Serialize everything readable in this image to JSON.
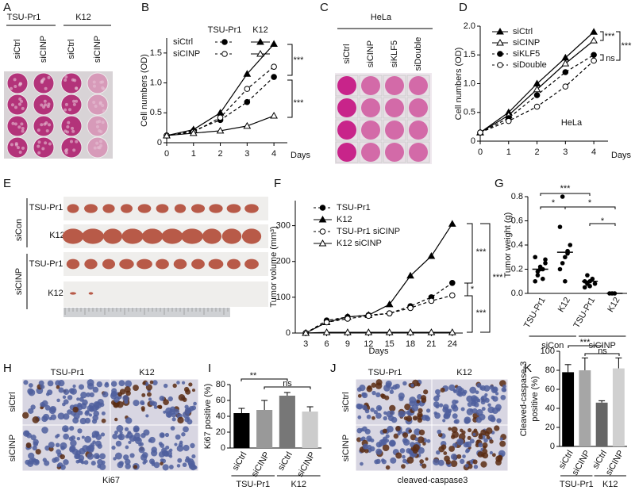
{
  "panel_labels": [
    "A",
    "B",
    "C",
    "D",
    "E",
    "F",
    "G",
    "H",
    "I",
    "J",
    "K"
  ],
  "images": [
    {
      "labels": [
        "TSU-Pr1",
        "K12",
        "siCtrl",
        "siCINP",
        "siCtrl",
        "siCINP"
      ]
    },
    {
      "labels": [
        "HeLa",
        "siCtrl",
        "siCINP",
        "siKLF5",
        "siDouble"
      ]
    },
    {
      "labels": [
        "siCon",
        "siCINP",
        "TSU-Pr1",
        "K12",
        "TSU-Pr1",
        "K12"
      ]
    },
    {
      "labels": [
        "TSU-Pr1",
        "K12",
        "siCtrl",
        "siCINP",
        "Ki67"
      ]
    },
    {
      "labels": [
        "TSU-Pr1",
        "K12",
        "siCtrl",
        "siCINP",
        "cleaved-caspase3"
      ]
    }
  ],
  "chart_data": [
    {
      "type": "line",
      "xlabel": "Days",
      "ylabel": "Cell numbers (OD)",
      "x": [
        0,
        1,
        2,
        3,
        4
      ],
      "xlim": [
        0,
        4.5
      ],
      "xticks": [
        0,
        1,
        2,
        3,
        4
      ],
      "ylim": [
        0,
        1.75
      ],
      "yticks": [
        0,
        0.5,
        {
          "value": 1,
          "label": "1.0"
        },
        1.5
      ],
      "legend_columns": [
        "TSU-Pr1",
        "K12"
      ],
      "legend_rows": [
        "siCtrl",
        "siCINP"
      ],
      "series": [
        {
          "color": "#000000",
          "marker": "circle",
          "filled": true,
          "dashed": true,
          "values": [
            0.12,
            0.2,
            0.38,
            0.68,
            1.1
          ]
        },
        {
          "color": "#000000",
          "marker": "triangle",
          "filled": true,
          "dashed": false,
          "values": [
            0.12,
            0.22,
            0.5,
            1.15,
            1.65
          ]
        },
        {
          "color": "#000000",
          "marker": "circle",
          "filled": false,
          "dashed": true,
          "values": [
            0.12,
            0.18,
            0.42,
            0.9,
            1.27
          ]
        },
        {
          "color": "#000000",
          "marker": "triangle",
          "filled": false,
          "dashed": false,
          "values": [
            0.12,
            0.16,
            0.2,
            0.28,
            0.45
          ]
        }
      ],
      "annotations": [
        "***",
        "***"
      ]
    },
    {
      "type": "line",
      "xlabel": "Days",
      "ylabel": "Cell numbers (OD)",
      "x": [
        0,
        1,
        2,
        3,
        4
      ],
      "xlim": [
        0,
        4.5
      ],
      "xticks": [
        0,
        1,
        2,
        3,
        4
      ],
      "ylim": [
        0,
        2
      ],
      "yticks": [
        0,
        0.5,
        {
          "value": 1,
          "label": "1.0"
        },
        1.5,
        {
          "value": 2,
          "label": "2.0"
        }
      ],
      "series": [
        {
          "name": "siCtrl",
          "color": "#000000",
          "marker": "triangle",
          "filled": true,
          "dashed": false,
          "values": [
            0.15,
            0.5,
            1.0,
            1.45,
            1.9
          ]
        },
        {
          "name": "siCINP",
          "color": "#000000",
          "marker": "triangle",
          "filled": false,
          "dashed": false,
          "values": [
            0.15,
            0.45,
            0.9,
            1.35,
            1.75
          ]
        },
        {
          "name": "siKLF5",
          "color": "#000000",
          "marker": "circle",
          "filled": true,
          "dashed": true,
          "values": [
            0.15,
            0.4,
            0.8,
            1.2,
            1.5
          ]
        },
        {
          "name": "siDouble",
          "color": "#000000",
          "marker": "circle",
          "filled": false,
          "dashed": true,
          "values": [
            0.15,
            0.35,
            0.6,
            0.95,
            1.4
          ]
        }
      ],
      "annotations": [
        "***",
        "***",
        "ns",
        "HeLa"
      ]
    },
    {
      "type": "line",
      "xlabel": "Days",
      "ylabel": "Tumor volume (mm³)",
      "x": [
        3,
        6,
        9,
        12,
        15,
        18,
        21,
        24
      ],
      "xlim": [
        1.5,
        25.5
      ],
      "xticks": [
        3,
        6,
        9,
        12,
        15,
        18,
        21,
        24
      ],
      "ylim": [
        0,
        370
      ],
      "yticks": [
        0,
        100,
        200,
        300
      ],
      "series": [
        {
          "name": "TSU-Pr1",
          "color": "#000000",
          "marker": "circle",
          "filled": true,
          "dashed": true,
          "values": [
            0,
            35,
            45,
            50,
            55,
            75,
            100,
            140
          ]
        },
        {
          "name": "K12",
          "color": "#000000",
          "marker": "triangle",
          "filled": true,
          "dashed": false,
          "values": [
            0,
            30,
            45,
            50,
            80,
            160,
            215,
            305
          ]
        },
        {
          "name": "TSU-Pr1 siCINP",
          "color": "#000000",
          "marker": "circle",
          "filled": false,
          "dashed": true,
          "values": [
            0,
            30,
            40,
            48,
            55,
            70,
            90,
            105
          ]
        },
        {
          "name": "K12 siCINP",
          "color": "#000000",
          "marker": "triangle",
          "filled": false,
          "dashed": false,
          "values": [
            0,
            2,
            2,
            2,
            2,
            2,
            2,
            2
          ]
        }
      ],
      "annotations": [
        "***",
        "*",
        "***",
        "***"
      ]
    },
    {
      "type": "scatter",
      "ylabel": "Tumor weight (g)",
      "categories": [
        "TSU-Pr1",
        "K12",
        "TSU-Pr1",
        "K12"
      ],
      "groups": [
        "siCon",
        "siCINP"
      ],
      "ylim": [
        0,
        0.8
      ],
      "yticks": [
        {
          "value": 0,
          "label": "0.0"
        },
        0.2,
        0.4,
        0.6,
        0.8
      ],
      "points": [
        [
          0.1,
          0.15,
          0.2,
          0.2,
          0.25,
          0.3,
          0.18,
          0.22,
          0.12,
          0.28
        ],
        [
          0.2,
          0.25,
          0.3,
          0.35,
          0.4,
          0.55,
          0.8,
          0.1,
          0.33
        ],
        [
          0.05,
          0.08,
          0.1,
          0.12,
          0.08,
          0.1,
          0.15,
          0.06
        ],
        [
          0,
          0,
          0
        ]
      ],
      "means": [
        0.2,
        0.34,
        0.1,
        0
      ],
      "annotations": [
        "***",
        "*",
        "*",
        "*"
      ]
    },
    {
      "type": "bar",
      "ylabel": "Ki67 positive (%)",
      "categories": [
        "siCtrl",
        "siCINP",
        "siCtrl",
        "siCINP"
      ],
      "groups": [
        "TSU-Pr1",
        "K12"
      ],
      "values": [
        44,
        48,
        66,
        46
      ],
      "errors": [
        6,
        12,
        4,
        6
      ],
      "colors": [
        "#000000",
        "#999999",
        "#777777",
        "#cccccc"
      ],
      "ylim": [
        0,
        80
      ],
      "yticks": [
        0,
        20,
        40,
        60,
        80
      ],
      "annotations": [
        "**",
        "ns"
      ]
    },
    {
      "type": "bar",
      "ylabel": [
        "Cleaved-caspase-3",
        "positive (%)"
      ],
      "categories": [
        "siCtrl",
        "siCINP",
        "siCtrl",
        "siCINP"
      ],
      "groups": [
        "TSU-Pr1",
        "K12"
      ],
      "values": [
        78,
        80,
        46,
        82
      ],
      "errors": [
        8,
        13,
        2,
        11
      ],
      "colors": [
        "#000000",
        "#a6a6a6",
        "#666666",
        "#d0d0d0"
      ],
      "ylim": [
        0,
        100
      ],
      "yticks": [
        0,
        20,
        40,
        60,
        80,
        100
      ],
      "annotations": [
        "***",
        "ns"
      ]
    }
  ]
}
